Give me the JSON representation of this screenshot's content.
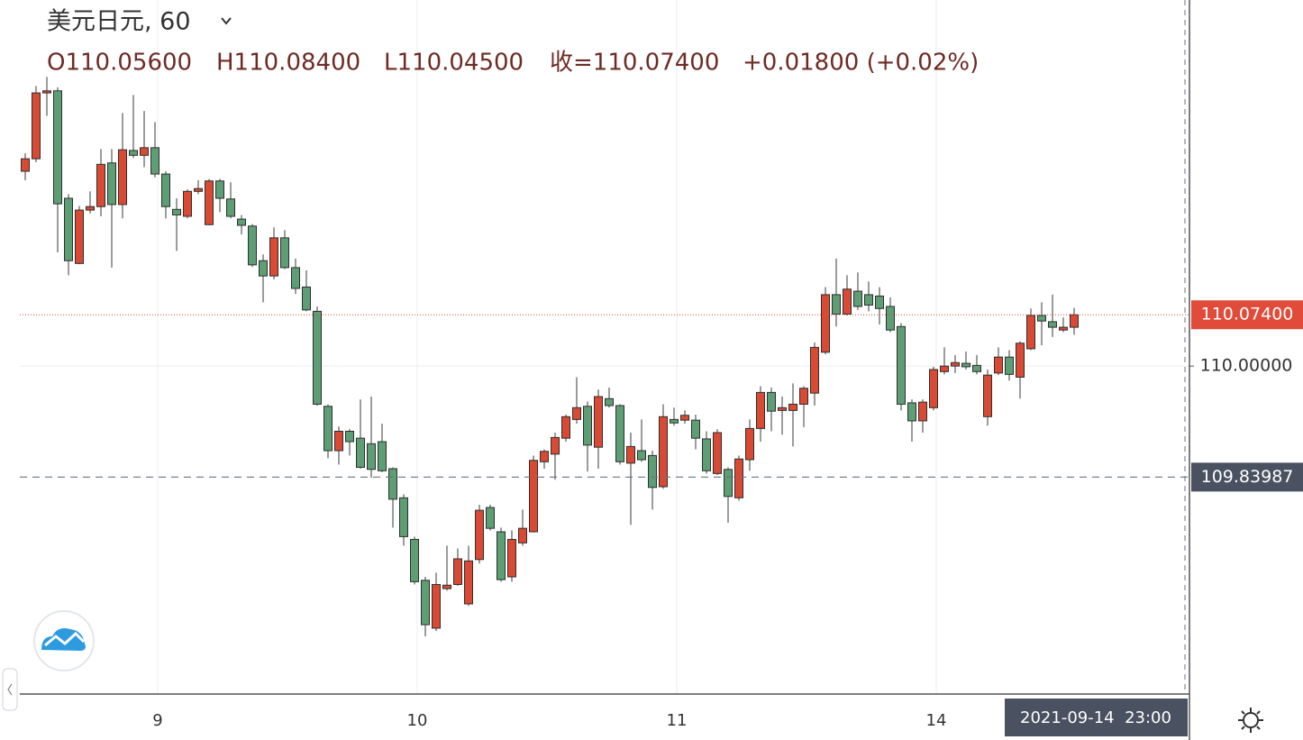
{
  "chart_data": {
    "type": "candlestick",
    "title": "美元日元, 60",
    "ohlc_labels": [
      "O110.05600",
      "H110.08400",
      "L110.04500",
      "收=110.07400",
      "+0.01800 (+0.02%)"
    ],
    "categories": [
      null,
      null,
      null,
      null,
      null,
      null,
      null,
      null,
      null,
      null,
      null,
      null,
      "9",
      null,
      null,
      null,
      null,
      null,
      null,
      null,
      null,
      null,
      null,
      null,
      null,
      null,
      null,
      null,
      null,
      null,
      null,
      null,
      null,
      null,
      null,
      null,
      "10",
      null,
      null,
      null,
      null,
      null,
      null,
      null,
      null,
      null,
      null,
      null,
      null,
      null,
      null,
      null,
      null,
      null,
      null,
      null,
      null,
      null,
      null,
      null,
      "11",
      null,
      null,
      null,
      null,
      null,
      null,
      null,
      null,
      null,
      null,
      null,
      null,
      null,
      null,
      null,
      null,
      null,
      null,
      null,
      null,
      null,
      null,
      null,
      "14",
      null,
      null,
      null,
      null,
      null,
      null,
      null,
      null,
      null,
      null,
      null,
      null,
      null
    ],
    "open": [
      110.281,
      110.299,
      110.394,
      110.397,
      110.242,
      110.148,
      110.225,
      110.23,
      110.293,
      110.233,
      110.311,
      110.304,
      110.315,
      110.277,
      110.226,
      110.216,
      110.252,
      110.204,
      110.267,
      110.241,
      110.212,
      110.202,
      110.152,
      110.13,
      110.185,
      110.142,
      110.114,
      110.079,
      109.942,
      109.878,
      109.906,
      109.896,
      109.888,
      109.891,
      109.852,
      109.81,
      109.75,
      109.691,
      109.622,
      109.679,
      109.685,
      109.657,
      109.721,
      109.796,
      109.761,
      109.696,
      109.745,
      109.761,
      109.862,
      109.873,
      109.896,
      109.923,
      109.942,
      109.883,
      109.953,
      109.943,
      109.86,
      109.878,
      109.871,
      109.826,
      109.923,
      109.922,
      109.922,
      109.895,
      109.845,
      109.851,
      109.81,
      109.865,
      109.91,
      109.962,
      109.936,
      109.936,
      109.945,
      109.961,
      110.02,
      110.103,
      110.075,
      110.108,
      110.103,
      110.101,
      110.086,
      110.057,
      109.947,
      109.921,
      109.94,
      109.992,
      110.0,
      110.004,
      110.001,
      109.927,
      109.99,
      110.013,
      109.984,
      110.025,
      110.073,
      110.064,
      110.052,
      110.056
    ],
    "high": [
      110.307,
      110.404,
      110.417,
      110.402,
      110.248,
      110.231,
      110.252,
      110.313,
      110.313,
      110.365,
      110.391,
      110.368,
      110.352,
      110.281,
      110.242,
      110.255,
      110.268,
      110.27,
      110.27,
      110.265,
      110.218,
      110.205,
      110.161,
      110.2,
      110.196,
      110.155,
      110.138,
      110.086,
      109.945,
      109.913,
      109.909,
      109.952,
      109.956,
      109.917,
      109.854,
      109.815,
      109.754,
      109.696,
      109.702,
      109.741,
      109.737,
      109.741,
      109.8,
      109.8,
      109.767,
      109.763,
      109.793,
      109.871,
      109.88,
      109.904,
      109.93,
      109.984,
      109.949,
      109.966,
      109.969,
      109.945,
      109.904,
      109.923,
      109.878,
      109.945,
      109.94,
      109.936,
      109.93,
      109.906,
      109.909,
      109.854,
      109.871,
      109.923,
      109.971,
      109.969,
      109.956,
      109.975,
      109.971,
      110.034,
      110.114,
      110.155,
      110.131,
      110.135,
      110.122,
      110.114,
      110.099,
      110.062,
      109.952,
      109.952,
      109.999,
      110.027,
      110.016,
      110.021,
      110.016,
      109.995,
      110.027,
      110.023,
      110.036,
      110.083,
      110.092,
      110.103,
      110.07,
      110.084
    ],
    "low": [
      110.268,
      110.294,
      110.361,
      110.164,
      110.131,
      110.147,
      110.22,
      110.216,
      110.142,
      110.213,
      110.3,
      110.287,
      110.272,
      110.213,
      110.166,
      110.213,
      110.248,
      110.203,
      110.222,
      110.213,
      110.19,
      110.143,
      110.092,
      110.125,
      110.14,
      110.104,
      110.079,
      109.943,
      109.867,
      109.858,
      109.871,
      109.852,
      109.839,
      109.847,
      109.767,
      109.741,
      109.685,
      109.61,
      109.618,
      109.676,
      109.683,
      109.654,
      109.715,
      109.763,
      109.689,
      109.689,
      109.741,
      109.76,
      109.852,
      109.836,
      109.891,
      109.917,
      109.848,
      109.852,
      109.94,
      109.858,
      109.771,
      109.862,
      109.793,
      109.823,
      109.914,
      109.917,
      109.88,
      109.845,
      109.843,
      109.774,
      109.806,
      109.849,
      109.891,
      109.906,
      109.901,
      109.884,
      109.912,
      109.943,
      110.017,
      110.057,
      110.073,
      110.081,
      110.079,
      110.06,
      110.049,
      109.936,
      109.891,
      109.904,
      109.936,
      109.988,
      109.99,
      109.995,
      109.988,
      109.914,
      109.987,
      109.979,
      109.953,
      110.023,
      110.03,
      110.042,
      110.049,
      110.045
    ],
    "close": [
      110.299,
      110.394,
      110.397,
      110.234,
      110.152,
      110.225,
      110.23,
      110.291,
      110.233,
      110.312,
      110.304,
      110.315,
      110.277,
      110.23,
      110.218,
      110.252,
      110.256,
      110.267,
      110.242,
      110.216,
      110.203,
      110.146,
      110.13,
      110.185,
      110.142,
      110.112,
      110.081,
      109.945,
      109.878,
      109.906,
      109.891,
      109.854,
      109.851,
      109.849,
      109.808,
      109.754,
      109.689,
      109.627,
      109.685,
      109.684,
      109.722,
      109.719,
      109.792,
      109.766,
      109.692,
      109.75,
      109.766,
      109.864,
      109.877,
      109.897,
      109.927,
      109.94,
      109.886,
      109.956,
      109.943,
      109.862,
      109.884,
      109.865,
      109.825,
      109.927,
      109.918,
      109.929,
      109.896,
      109.849,
      109.904,
      109.812,
      109.866,
      109.91,
      109.962,
      109.935,
      109.94,
      109.945,
      109.968,
      110.027,
      110.103,
      110.075,
      110.111,
      110.086,
      110.088,
      110.083,
      110.052,
      109.945,
      109.921,
      109.948,
      109.995,
      110.0,
      110.005,
      109.999,
      109.992,
      109.987,
      110.013,
      109.988,
      110.033,
      110.073,
      110.065,
      110.056,
      110.056,
      110.074
    ],
    "up_color": "#d94a35",
    "down_color": "#5d9e74",
    "ylim": [
      109.527,
      110.528
    ],
    "yticks": [
      {
        "value": 110,
        "label": "110.00000"
      }
    ],
    "grid": true,
    "last_price": {
      "value": 110.074,
      "label": "110.07400",
      "color": "#e04b3a"
    },
    "crosshair": {
      "value": 109.83987,
      "label": "109.83987",
      "time_label": "2021-09-14  23:00"
    }
  }
}
